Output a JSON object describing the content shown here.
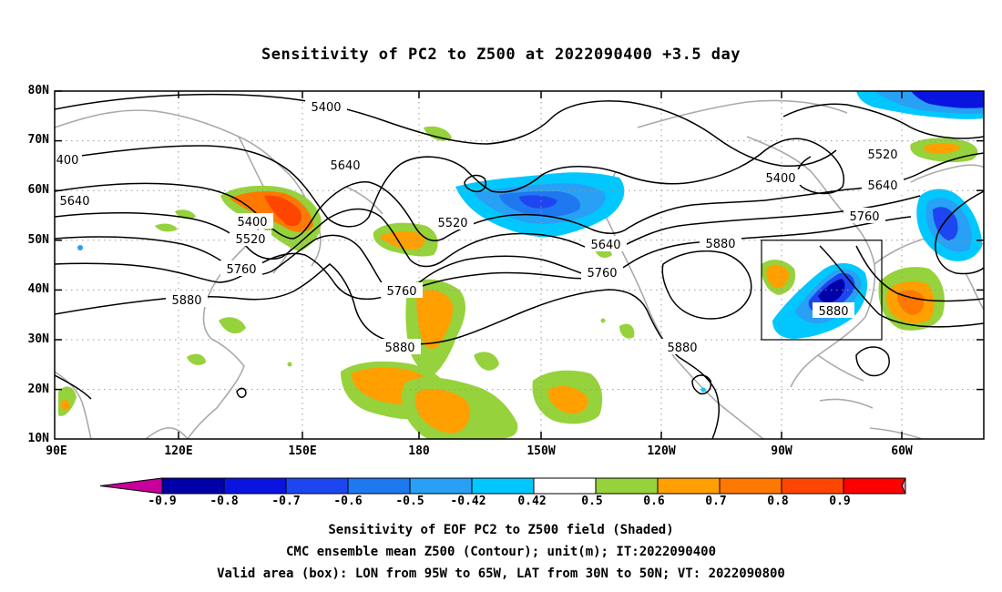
{
  "title": "Sensitivity of PC2 to Z500 at 2022090400 +3.5 day",
  "lat_labels": [
    "80N",
    "70N",
    "60N",
    "50N",
    "40N",
    "30N",
    "20N",
    "10N"
  ],
  "lon_labels": [
    "90E",
    "120E",
    "150E",
    "180",
    "150W",
    "120W",
    "90W",
    "60W"
  ],
  "colorbar": {
    "labels": [
      "-0.9",
      "-0.8",
      "-0.7",
      "-0.6",
      "-0.5",
      "-0.42",
      "0.42",
      "0.5",
      "0.6",
      "0.7",
      "0.8",
      "0.9"
    ],
    "colors": [
      "#0000a8",
      "#0a14e0",
      "#1e46f0",
      "#1e78f0",
      "#28a0f5",
      "#00c8ff",
      "#ffffff",
      "#96d23c",
      "#ffa000",
      "#ff7800",
      "#ff4600",
      "#ff0000"
    ],
    "low_end_color": "#c8009b",
    "high_end_color": "#f5a0c8"
  },
  "contour_labels": [
    "5400",
    "5520",
    "5640",
    "5760",
    "5880"
  ],
  "footer": {
    "line1": "Sensitivity of EOF PC2 to Z500 field (Shaded)",
    "line2": "CMC ensemble mean Z500 (Contour); unit(m); IT:2022090400",
    "line3": "Valid area (box): LON from 95W to 65W, LAT from 30N to 50N; VT: 2022090800"
  }
}
